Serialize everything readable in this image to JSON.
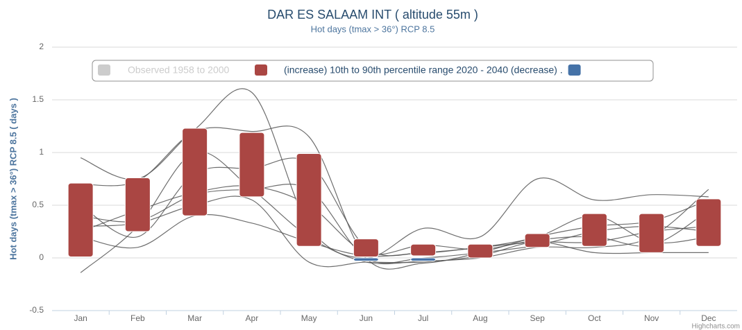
{
  "chart_data": {
    "type": "columnrange",
    "title": "DAR ES SALAAM INT ( altitude 55m )",
    "subtitle": "Hot days (tmax > 36°) RCP 8.5",
    "y_axis_label": "Hot days (tmax > 36°) RCP 8.5 ( days )",
    "credit": "Highcharts.com",
    "categories": [
      "Jan",
      "Feb",
      "Mar",
      "Apr",
      "May",
      "Jun",
      "Jul",
      "Aug",
      "Sep",
      "Oct",
      "Nov",
      "Dec"
    ],
    "ylim": [
      -0.5,
      2
    ],
    "yticks": [
      -0.5,
      0,
      0.5,
      1,
      1.5,
      2
    ],
    "grid": true,
    "legend": "top",
    "observed": {
      "name": "Observed 1958 to 2000",
      "color": "#cccccc"
    },
    "range": {
      "name": "(increase) 10th to 90th percentile range 2020 - 2040 (decrease) .",
      "color": "#aa4643",
      "low": [
        0.01,
        0.25,
        0.4,
        0.58,
        0.11,
        0.01,
        0.02,
        0.0,
        0.1,
        0.11,
        0.05,
        0.11
      ],
      "high": [
        0.71,
        0.76,
        1.23,
        1.19,
        0.99,
        0.18,
        0.13,
        0.13,
        0.23,
        0.42,
        0.42,
        0.56
      ]
    },
    "decrease": {
      "color": "#4572a7",
      "low": [
        null,
        null,
        null,
        null,
        null,
        -0.03,
        -0.03,
        null,
        null,
        null,
        null,
        null
      ],
      "high": [
        null,
        null,
        null,
        null,
        null,
        0,
        0,
        null,
        null,
        null,
        null,
        null
      ]
    },
    "lines_color": "#555555",
    "lines": [
      [
        0.95,
        0.75,
        1.22,
        1.57,
        0.3,
        0.0,
        0.28,
        0.2,
        0.75,
        0.55,
        0.6,
        0.58
      ],
      [
        0.7,
        0.73,
        1.2,
        1.2,
        1.15,
        0.0,
        -0.05,
        0.05,
        0.2,
        0.3,
        0.35,
        0.55
      ],
      [
        0.5,
        0.2,
        0.8,
        0.85,
        0.9,
        0.1,
        0.05,
        0.1,
        0.15,
        0.15,
        0.25,
        0.3
      ],
      [
        -0.14,
        0.3,
        1.0,
        0.65,
        0.2,
        -0.04,
        -0.03,
        0.0,
        0.1,
        0.1,
        0.2,
        0.65
      ],
      [
        0.4,
        0.35,
        0.6,
        0.65,
        0.65,
        0.0,
        0.0,
        0.05,
        0.12,
        0.25,
        0.3,
        0.25
      ],
      [
        0.3,
        0.33,
        0.5,
        0.55,
        -0.04,
        -0.04,
        -0.04,
        0.02,
        0.15,
        0.05,
        0.05,
        0.05
      ],
      [
        0.2,
        0.1,
        0.4,
        0.33,
        0.15,
        0.02,
        0.05,
        0.1,
        0.2,
        0.4,
        0.15,
        0.2
      ],
      [
        0.25,
        0.45,
        0.62,
        0.68,
        0.5,
        0.05,
        0.12,
        0.08,
        0.17,
        0.2,
        0.12,
        0.45
      ]
    ]
  }
}
